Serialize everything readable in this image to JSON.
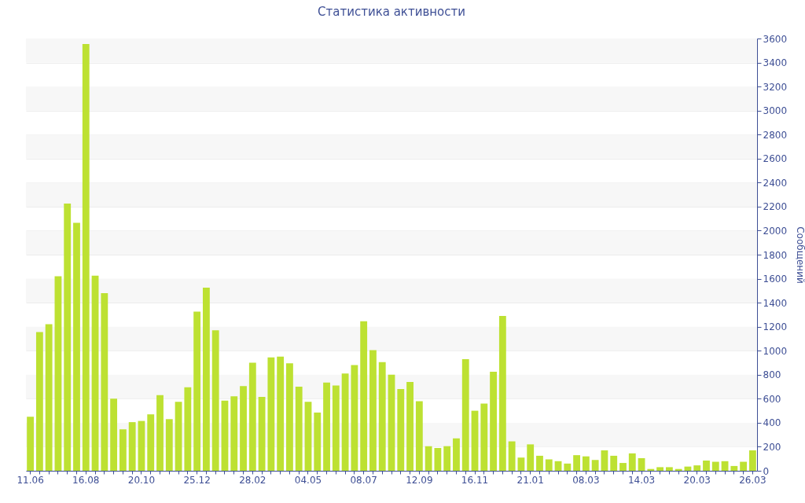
{
  "chart_data": {
    "type": "bar",
    "title": "Статистика активности",
    "ylabel": "Сообщений",
    "categories": [
      "11.06",
      null,
      null,
      null,
      null,
      null,
      "16.08",
      null,
      null,
      null,
      null,
      null,
      "20.10",
      null,
      null,
      null,
      null,
      null,
      "25.12",
      null,
      null,
      null,
      null,
      null,
      "28.02",
      null,
      null,
      null,
      null,
      null,
      "04.05",
      null,
      null,
      null,
      null,
      null,
      "08.07",
      null,
      null,
      null,
      null,
      null,
      "12.09",
      null,
      null,
      null,
      null,
      null,
      "16.11",
      null,
      null,
      null,
      null,
      null,
      "21.01",
      null,
      null,
      null,
      null,
      null,
      "08.03",
      null,
      null,
      null,
      null,
      null,
      "14.03",
      null,
      null,
      null,
      null,
      null,
      "20.03",
      null,
      null,
      null,
      null,
      null,
      "26.03"
    ],
    "values": [
      450,
      1155,
      1220,
      1620,
      2225,
      2065,
      3555,
      1625,
      1480,
      600,
      345,
      405,
      415,
      470,
      630,
      430,
      575,
      695,
      1325,
      1525,
      1170,
      585,
      620,
      705,
      900,
      615,
      945,
      950,
      895,
      700,
      575,
      485,
      735,
      710,
      810,
      880,
      1245,
      1005,
      905,
      800,
      680,
      740,
      580,
      205,
      190,
      205,
      270,
      930,
      500,
      560,
      825,
      1290,
      245,
      110,
      220,
      125,
      95,
      80,
      60,
      130,
      120,
      90,
      170,
      125,
      65,
      145,
      105,
      15,
      30,
      30,
      15,
      35,
      45,
      85,
      75,
      80,
      40,
      75,
      170
    ],
    "color": "#bde132",
    "ylim": [
      0,
      3600
    ],
    "yticks": [
      0,
      200,
      400,
      600,
      800,
      1000,
      1200,
      1400,
      1600,
      1800,
      2000,
      2200,
      2400,
      2600,
      2800,
      3000,
      3200,
      3400,
      3600
    ],
    "grid": true
  }
}
